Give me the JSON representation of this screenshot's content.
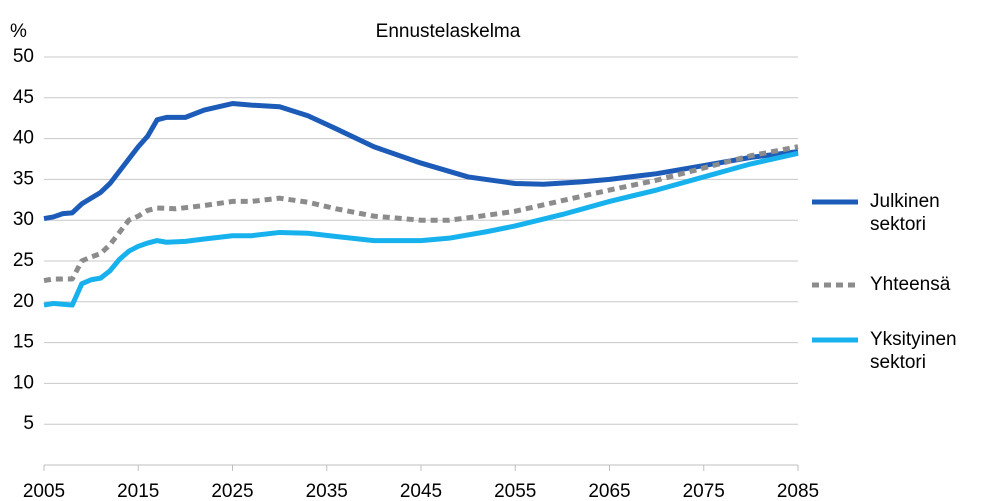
{
  "chart_data": {
    "type": "line",
    "title": "Ennustelaskelma",
    "y_label": "%",
    "xlim": [
      2005,
      2085
    ],
    "xticks": [
      2005,
      2015,
      2025,
      2035,
      2045,
      2055,
      2065,
      2075,
      2085
    ],
    "ylim": [
      0,
      50
    ],
    "yticks": [
      5,
      10,
      15,
      20,
      25,
      30,
      35,
      40,
      45,
      50
    ],
    "grid": true,
    "legend": "right",
    "series": [
      {
        "name": "Julkinen sektori",
        "color": "#1c5cb8",
        "dashed": false,
        "x": [
          2005,
          2006,
          2007,
          2008,
          2009,
          2010,
          2011,
          2012,
          2013,
          2014,
          2015,
          2016,
          2017,
          2018,
          2020,
          2022,
          2025,
          2027,
          2030,
          2033,
          2036,
          2040,
          2045,
          2050,
          2055,
          2058,
          2062,
          2065,
          2070,
          2075,
          2080,
          2085
        ],
        "values": [
          30.2,
          30.4,
          30.8,
          30.9,
          32.0,
          32.7,
          33.4,
          34.5,
          36,
          37.5,
          39,
          40.3,
          42.3,
          42.6,
          42.6,
          43.5,
          44.3,
          44.1,
          43.9,
          42.8,
          41.2,
          39,
          37,
          35.3,
          34.5,
          34.4,
          34.7,
          35,
          35.7,
          36.7,
          37.7,
          38.4
        ]
      },
      {
        "name": "Yhteensä",
        "color": "#8c8c8c",
        "dashed": true,
        "x": [
          2005,
          2006,
          2007,
          2008,
          2009,
          2010,
          2011,
          2012,
          2013,
          2014,
          2015,
          2016,
          2017,
          2019,
          2022,
          2025,
          2027,
          2030,
          2033,
          2036,
          2040,
          2045,
          2048,
          2052,
          2055,
          2060,
          2065,
          2070,
          2075,
          2080,
          2085
        ],
        "values": [
          22.6,
          22.8,
          22.8,
          22.8,
          25,
          25.5,
          25.9,
          27,
          28.5,
          30,
          30.5,
          31.2,
          31.5,
          31.4,
          31.8,
          32.3,
          32.3,
          32.7,
          32.2,
          31.4,
          30.5,
          30,
          30,
          30.6,
          31.1,
          32.4,
          33.7,
          34.9,
          36.4,
          37.9,
          39
        ]
      },
      {
        "name": "Yksityinen sektori",
        "color": "#17b2ee",
        "dashed": false,
        "x": [
          2005,
          2006,
          2007,
          2008,
          2009,
          2010,
          2011,
          2012,
          2013,
          2014,
          2015,
          2016,
          2017,
          2018,
          2020,
          2022,
          2025,
          2027,
          2030,
          2033,
          2036,
          2040,
          2045,
          2048,
          2052,
          2055,
          2060,
          2065,
          2070,
          2075,
          2080,
          2085
        ],
        "values": [
          19.6,
          19.8,
          19.7,
          19.6,
          22.2,
          22.7,
          22.9,
          23.8,
          25.2,
          26.2,
          26.8,
          27.2,
          27.5,
          27.3,
          27.4,
          27.7,
          28.1,
          28.1,
          28.5,
          28.4,
          28,
          27.5,
          27.5,
          27.8,
          28.6,
          29.3,
          30.7,
          32.3,
          33.7,
          35.3,
          36.9,
          38.2
        ]
      }
    ]
  }
}
